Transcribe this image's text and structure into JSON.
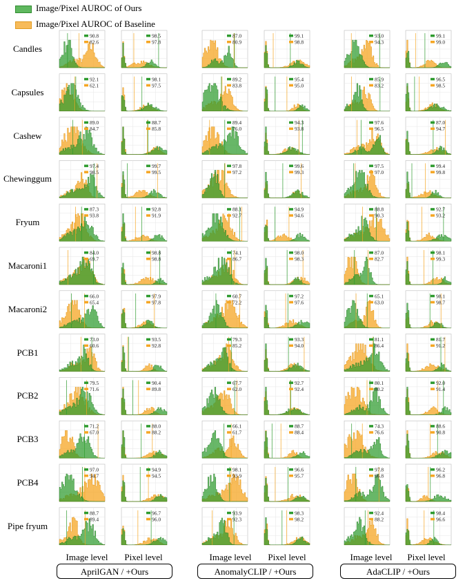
{
  "legend": {
    "ours": "Image/Pixel  AUROC of Ours",
    "baseline": "Image/Pixel  AUROC of Baseline"
  },
  "colors": {
    "ours": "#2e9b2e",
    "baseline": "#f5a623"
  },
  "column_labels": {
    "image": "Image level",
    "pixel": "Pixel level"
  },
  "methods": [
    "AprilGAN / +Ours",
    "AnomalyCLIP / +Ours",
    "AdaCLIP / +Ours"
  ],
  "chart_data": {
    "type": "histogram-grid",
    "rows": [
      "Candles",
      "Capsules",
      "Cashew",
      "Chewinggum",
      "Fryum",
      "Macaroni1",
      "Macaroni2",
      "PCB1",
      "PCB2",
      "PCB3",
      "PCB4",
      "Pipe fryum"
    ],
    "values": [
      [
        [
          "90.8",
          "82.6"
        ],
        [
          "98.5",
          "97.8"
        ],
        [
          "87.0",
          "80.9"
        ],
        [
          "99.1",
          "98.8"
        ],
        [
          "93.0",
          "94.3"
        ],
        [
          "99.1",
          "99.0"
        ]
      ],
      [
        [
          "92.1",
          "62.1"
        ],
        [
          "98.1",
          "97.5"
        ],
        [
          "89.2",
          "83.8"
        ],
        [
          "95.4",
          "95.0"
        ],
        [
          "85.9",
          "83.2"
        ],
        [
          "96.5",
          "98.5"
        ]
      ],
      [
        [
          "89.0",
          "84.7"
        ],
        [
          "88.7",
          "85.8"
        ],
        [
          "89.4",
          "76.0"
        ],
        [
          "94.3",
          "93.8"
        ],
        [
          "97.6",
          "96.5"
        ],
        [
          "87.0",
          "94.7"
        ]
      ],
      [
        [
          "97.4",
          "98.5"
        ],
        [
          "99.7",
          "99.5"
        ],
        [
          "97.8",
          "97.2"
        ],
        [
          "99.6",
          "99.3"
        ],
        [
          "97.5",
          "97.0"
        ],
        [
          "99.4",
          "99.8"
        ]
      ],
      [
        [
          "87.3",
          "93.8"
        ],
        [
          "92.8",
          "91.9"
        ],
        [
          "88.1",
          "92.7"
        ],
        [
          "94.9",
          "94.6"
        ],
        [
          "88.8",
          "90.3"
        ],
        [
          "92.7",
          "93.2"
        ]
      ],
      [
        [
          "84.0",
          "69.7"
        ],
        [
          "98.8",
          "98.8"
        ],
        [
          "74.1",
          "86.7"
        ],
        [
          "98.0",
          "98.3"
        ],
        [
          "87.0",
          "82.7"
        ],
        [
          "98.1",
          "99.3"
        ]
      ],
      [
        [
          "66.0",
          "65.4"
        ],
        [
          "97.9",
          "97.8"
        ],
        [
          "60.7",
          "72.2"
        ],
        [
          "97.2",
          "97.6"
        ],
        [
          "65.1",
          "63.0"
        ],
        [
          "98.1",
          "98.7"
        ]
      ],
      [
        [
          "73.0",
          "60.6"
        ],
        [
          "93.5",
          "92.8"
        ],
        [
          "79.3",
          "85.2"
        ],
        [
          "93.3",
          "94.0"
        ],
        [
          "81.1",
          "86.4"
        ],
        [
          "81.7",
          "91.2"
        ]
      ],
      [
        [
          "79.5",
          "71.6"
        ],
        [
          "90.4",
          "89.8"
        ],
        [
          "67.7",
          "62.0"
        ],
        [
          "92.7",
          "92.4"
        ],
        [
          "80.1",
          "80.2"
        ],
        [
          "92.0",
          "91.4"
        ]
      ],
      [
        [
          "71.2",
          "67.0"
        ],
        [
          "88.0",
          "88.2"
        ],
        [
          "66.1",
          "61.7"
        ],
        [
          "88.7",
          "88.4"
        ],
        [
          "74.3",
          "76.6"
        ],
        [
          "88.6",
          "90.8"
        ]
      ],
      [
        [
          "97.0",
          "94.7"
        ],
        [
          "94.9",
          "94.5"
        ],
        [
          "98.1",
          "93.9"
        ],
        [
          "96.6",
          "95.7"
        ],
        [
          "97.8",
          "96.8"
        ],
        [
          "96.2",
          "96.8"
        ]
      ],
      [
        [
          "88.7",
          "89.4"
        ],
        [
          "96.7",
          "96.0"
        ],
        [
          "93.9",
          "92.3"
        ],
        [
          "98.3",
          "98.2"
        ],
        [
          "92.4",
          "88.2"
        ],
        [
          "98.4",
          "96.6"
        ]
      ]
    ]
  }
}
